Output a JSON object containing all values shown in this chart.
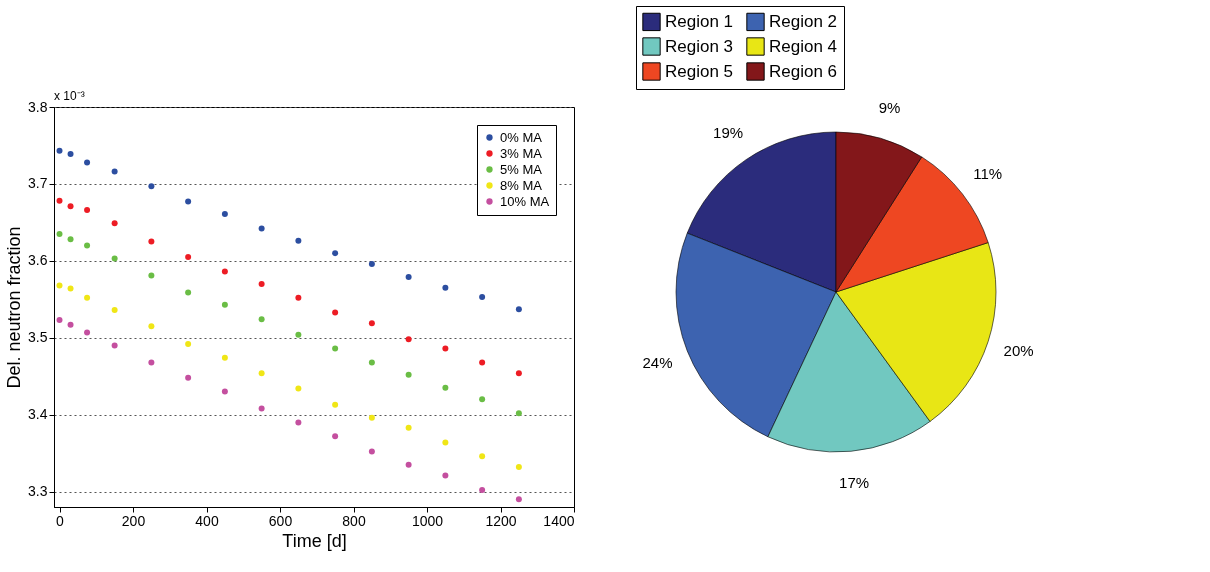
{
  "chart_data": [
    {
      "type": "scatter",
      "xlabel": "Time [d]",
      "ylabel": "Del. neutron fraction",
      "annotations": [
        "x 10⁻³"
      ],
      "x": [
        0,
        30,
        75,
        150,
        250,
        350,
        450,
        550,
        650,
        750,
        850,
        950,
        1050,
        1150,
        1250
      ],
      "xlim": [
        -15,
        1400
      ],
      "xticks": [
        0,
        200,
        400,
        600,
        800,
        1000,
        1200,
        1400
      ],
      "ylim": [
        3.28,
        3.8
      ],
      "yticks": [
        3.3,
        3.4,
        3.5,
        3.6,
        3.7,
        3.8
      ],
      "grid": "y",
      "legend": "top right",
      "marker": "circle",
      "series": [
        {
          "name": "0% MA",
          "color": "#2c4ea0",
          "values": [
            3.743,
            3.739,
            3.728,
            3.716,
            3.697,
            3.677,
            3.661,
            3.642,
            3.626,
            3.61,
            3.596,
            3.579,
            3.565,
            3.553,
            3.537
          ]
        },
        {
          "name": "3% MA",
          "color": "#ed1c24",
          "values": [
            3.678,
            3.671,
            3.666,
            3.649,
            3.625,
            3.605,
            3.586,
            3.57,
            3.552,
            3.533,
            3.519,
            3.498,
            3.486,
            3.468,
            3.454
          ]
        },
        {
          "name": "5% MA",
          "color": "#6abd45",
          "values": [
            3.635,
            3.628,
            3.62,
            3.603,
            3.581,
            3.559,
            3.543,
            3.524,
            3.504,
            3.486,
            3.468,
            3.452,
            3.435,
            3.42,
            3.402
          ]
        },
        {
          "name": "8% MA",
          "color": "#f0e616",
          "values": [
            3.568,
            3.564,
            3.552,
            3.536,
            3.515,
            3.492,
            3.474,
            3.454,
            3.434,
            3.413,
            3.396,
            3.383,
            3.364,
            3.346,
            3.332
          ]
        },
        {
          "name": "10% MA",
          "color": "#c44f9f",
          "values": [
            3.523,
            3.517,
            3.507,
            3.49,
            3.468,
            3.448,
            3.43,
            3.408,
            3.39,
            3.372,
            3.352,
            3.335,
            3.321,
            3.302,
            3.29
          ]
        }
      ]
    },
    {
      "type": "pie",
      "categories": [
        "Region 1",
        "Region 2",
        "Region 3",
        "Region 4",
        "Region 5",
        "Region 6"
      ],
      "values": [
        19,
        24,
        17,
        20,
        11,
        9
      ],
      "value_labels": [
        "19%",
        "24%",
        "17%",
        "20%",
        "11%",
        "9%"
      ],
      "colors": [
        "#2b2c7c",
        "#3d63b0",
        "#71c8c0",
        "#e8e615",
        "#ee4722",
        "#83171a"
      ],
      "legend": "top"
    }
  ]
}
